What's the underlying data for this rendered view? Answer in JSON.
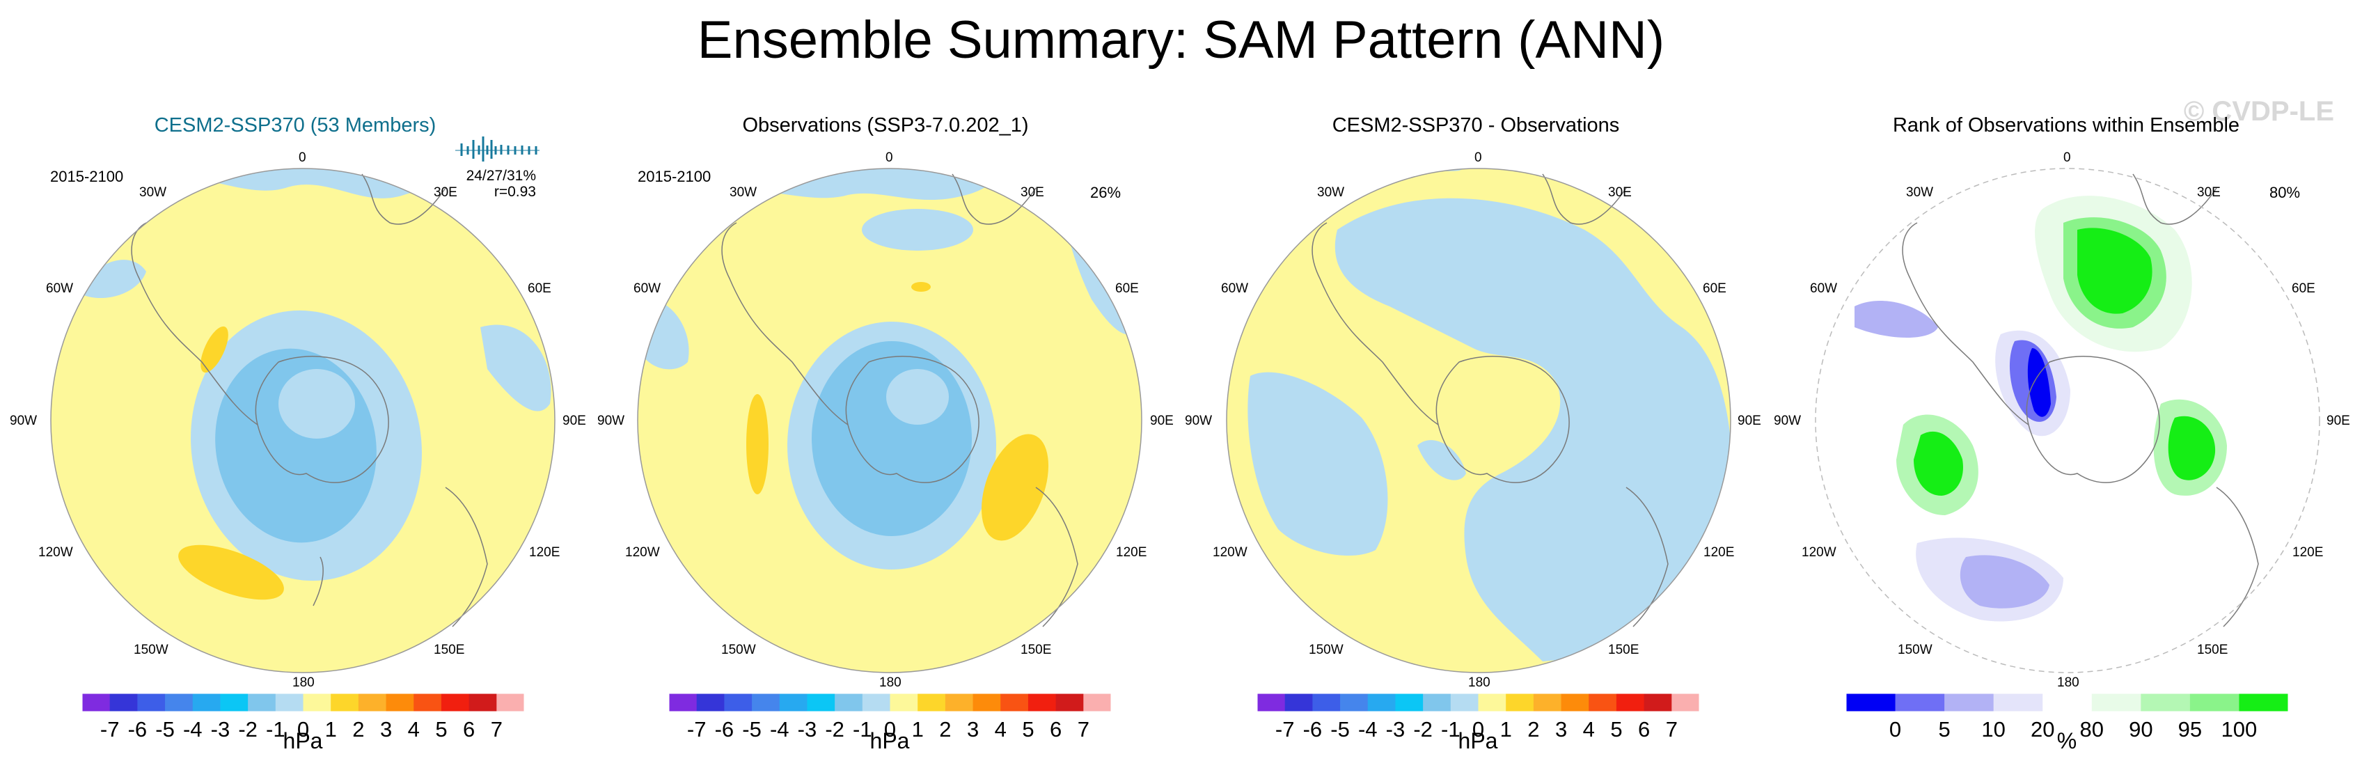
{
  "title": "Ensemble Summary: SAM Pattern (ANN)",
  "watermark": "© CVDP-LE",
  "panels": [
    {
      "title": "CESM2-SSP370 (53 Members)",
      "period": "2015-2100",
      "pct": "",
      "stats1": "24/27/31%",
      "stats2": "r=0.93",
      "units": "hPa"
    },
    {
      "title": "Observations (SSP3-7.0.202_1)",
      "period": "2015-2100",
      "pct": "26%",
      "units": "hPa"
    },
    {
      "title": "CESM2-SSP370 - Observations",
      "period": "",
      "pct": "",
      "units": "hPa"
    },
    {
      "title": "Rank of Observations within Ensemble",
      "period": "",
      "pct": "80%",
      "units": "%"
    }
  ],
  "lon_labels": {
    "top": "0",
    "bottom": "180",
    "l30": "30W",
    "r30": "30E",
    "l60": "60W",
    "r60": "60E",
    "l90": "90W",
    "r90": "90E",
    "l120": "120W",
    "r120": "120E",
    "l150": "150W",
    "r150": "150E"
  },
  "colorbar_hpa": {
    "colors": [
      "#7f2be0",
      "#3535d8",
      "#3d5ee8",
      "#4585ec",
      "#27a9f0",
      "#0bc6f5",
      "#80c6ec",
      "#b5dcf2",
      "#fdf89a",
      "#fdd62a",
      "#fdb12a",
      "#fd8b0a",
      "#f95313",
      "#f11f0f",
      "#d11b1b",
      "#faafaf"
    ],
    "labels": [
      "-7",
      "-6",
      "-5",
      "-4",
      "-3",
      "-2",
      "-1",
      "0",
      "1",
      "2",
      "3",
      "4",
      "5",
      "6",
      "7"
    ]
  },
  "colorbar_rank": {
    "colors": [
      "#0000f5",
      "#6f6ff5",
      "#b2b2f5",
      "#e4e4fa",
      "#ffffff",
      "#e8fbe8",
      "#b4f7b4",
      "#8af38a",
      "#15ee15"
    ],
    "labels": [
      "0",
      "5",
      "10",
      "20",
      "80",
      "90",
      "95",
      "100"
    ]
  },
  "fill_colors": {
    "yellow": "#fdf89a",
    "lightblue": "#b5dcf2",
    "blue2": "#80c6ec",
    "orange": "#fdd62a",
    "green": "#15ee15",
    "bluedeep": "#0000f5"
  }
}
